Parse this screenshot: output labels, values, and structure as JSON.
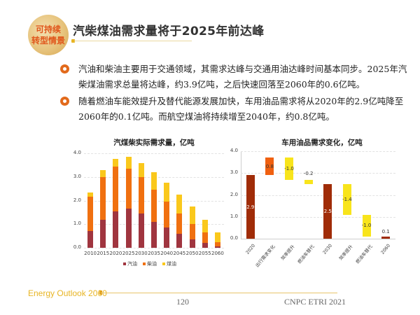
{
  "header": {
    "logo_line1": "可持续",
    "logo_line2": "转型情景",
    "title": "汽柴煤油需求量将于2025年前达峰"
  },
  "bullets": [
    "汽油和柴油主要用于交通领域，其需求达峰与交通用油达峰时间基本同步。2025年汽柴煤油需求总量将达峰，约3.9亿吨，之后快速回落至2060年的0.6亿吨。",
    "随着燃油车能效提升及替代能源发展加快，车用油品需求将从2020年的2.9亿吨降至2060年的0.1亿吨。而航空煤油将持续增至2040年，约0.8亿吨。"
  ],
  "colors": {
    "gasoline": "#a0353f",
    "diesel": "#f07010",
    "jet_fuel": "#fac81c",
    "waterfall_total": "#a02c08",
    "waterfall_increase": "#f06010",
    "waterfall_decrease": "#f8e41c",
    "accent": "#e8b524"
  },
  "chart_data": [
    {
      "type": "bar",
      "stacked": true,
      "title": "汽煤柴实际需求量，亿吨",
      "categories": [
        "2010",
        "2015",
        "2020",
        "2025",
        "2030",
        "2035",
        "2040",
        "2045",
        "2050",
        "2055",
        "2060"
      ],
      "series": [
        {
          "name": "汽油",
          "values": [
            0.7,
            1.2,
            1.55,
            1.65,
            1.45,
            1.1,
            0.85,
            0.6,
            0.35,
            0.2,
            0.05
          ]
        },
        {
          "name": "柴油",
          "values": [
            1.45,
            1.8,
            1.9,
            1.7,
            1.55,
            1.35,
            1.1,
            0.85,
            0.65,
            0.45,
            0.2
          ]
        },
        {
          "name": "煤油",
          "values": [
            0.2,
            0.3,
            0.3,
            0.5,
            0.6,
            0.75,
            0.8,
            0.8,
            0.75,
            0.55,
            0.4
          ]
        }
      ],
      "xlabel": "",
      "ylabel": "",
      "yticks": [
        "0.0",
        "1.0",
        "2.0",
        "3.0",
        "4.0"
      ],
      "ylim": [
        0,
        4.0
      ],
      "grid": true,
      "legend_position": "bottom"
    },
    {
      "type": "waterfall",
      "title": "车用油品需求变化，亿吨",
      "categories": [
        "2020",
        "出行需求变化",
        "效率提升",
        "燃油车替代",
        "2030",
        "效率提升",
        "燃油车替代",
        "2060"
      ],
      "values": [
        2.9,
        0.8,
        -1.0,
        -0.2,
        2.5,
        -1.4,
        -1.0,
        0.1
      ],
      "labels": [
        "2.9",
        "0.8",
        "-1.0",
        "-0.2",
        "2.5",
        "-1.4",
        "-1.0",
        "0.1"
      ],
      "bar_kind": [
        "total",
        "increase",
        "decrease",
        "decrease",
        "total",
        "decrease",
        "decrease",
        "total"
      ],
      "yticks": [
        "0.0",
        "1.0",
        "2.0",
        "3.0",
        "4.0"
      ],
      "ylim": [
        0,
        4.0
      ],
      "grid": true
    }
  ],
  "footer": {
    "brand": "Energy Outlook 2060",
    "page": "120",
    "org": "CNPC ETRI 2021"
  }
}
